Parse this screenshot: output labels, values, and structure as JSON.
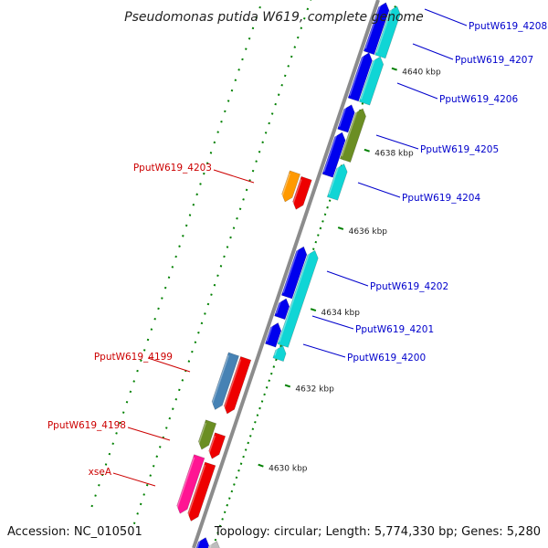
{
  "title": "Pseudomonas putida W619, complete genome",
  "accession": "Accession: NC_010501",
  "summary": "Topology: circular; Length: 5,774,330 bp; Genes: 5,280",
  "ruler_ticks": [
    "4640 kbp",
    "4638 kbp",
    "4636 kbp",
    "4634 kbp",
    "4632 kbp",
    "4630 kbp"
  ],
  "gene_labels": {
    "right": [
      "PputW619_4208",
      "PputW619_4207",
      "PputW619_4206",
      "PputW619_4205",
      "PputW619_4204",
      "PputW619_4202",
      "PputW619_4201",
      "PputW619_4200"
    ],
    "left": [
      "PputW619_4203",
      "PputW619_4199",
      "PputW619_4198",
      "xseA"
    ]
  },
  "colors": {
    "forward_label": "#0000cc",
    "reverse_label": "#cc0000",
    "backbone": "#888888",
    "blue": "#0000ee",
    "cyan": "#10d5d5",
    "olive": "#6b8e23",
    "steelblue": "#4682b4",
    "red": "#ee0000",
    "orange": "#ff9900",
    "pink": "#ff1493",
    "gray": "#bdbdbd",
    "tick_green": "#008000"
  }
}
